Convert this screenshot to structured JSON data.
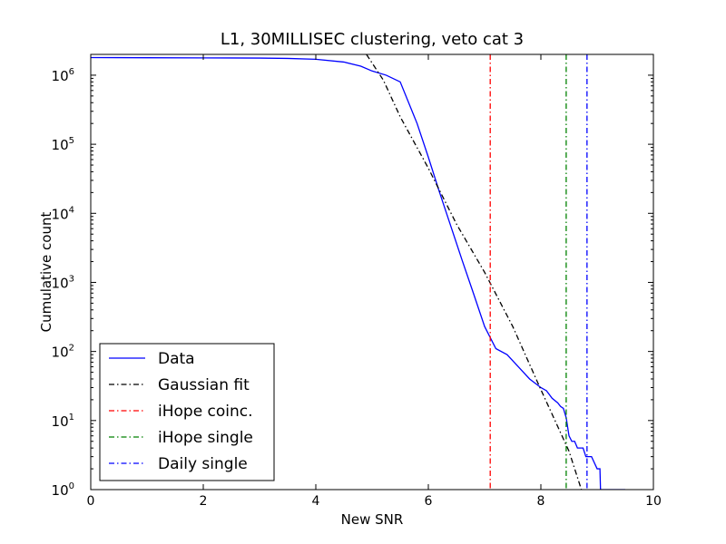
{
  "chart_data": {
    "type": "line",
    "title": "L1, 30MILLISEC clustering, veto cat 3",
    "xlabel": "New SNR",
    "ylabel": "Cumulative count",
    "xlim": [
      0,
      10
    ],
    "ylim": [
      1,
      2000000
    ],
    "yscale": "log",
    "grid": false,
    "legend_position": "lower-left",
    "x_ticks": [
      {
        "value": 0,
        "label": "0"
      },
      {
        "value": 2,
        "label": "2"
      },
      {
        "value": 4,
        "label": "4"
      },
      {
        "value": 6,
        "label": "6"
      },
      {
        "value": 8,
        "label": "8"
      },
      {
        "value": 10,
        "label": "10"
      }
    ],
    "y_ticks": [
      {
        "exp": 0,
        "base": "10",
        "sup": "0"
      },
      {
        "exp": 1,
        "base": "10",
        "sup": "1"
      },
      {
        "exp": 2,
        "base": "10",
        "sup": "2"
      },
      {
        "exp": 3,
        "base": "10",
        "sup": "3"
      },
      {
        "exp": 4,
        "base": "10",
        "sup": "4"
      },
      {
        "exp": 5,
        "base": "10",
        "sup": "5"
      },
      {
        "exp": 6,
        "base": "10",
        "sup": "6"
      }
    ],
    "series": [
      {
        "name": "Data",
        "color": "#0000ff",
        "style": "solid",
        "points": [
          [
            0,
            1800000
          ],
          [
            1,
            1790000
          ],
          [
            2,
            1780000
          ],
          [
            3,
            1770000
          ],
          [
            3.5,
            1750000
          ],
          [
            4,
            1700000
          ],
          [
            4.5,
            1550000
          ],
          [
            4.8,
            1350000
          ],
          [
            5.0,
            1150000
          ],
          [
            5.25,
            1000000
          ],
          [
            5.5,
            800000
          ],
          [
            5.8,
            200000
          ],
          [
            6.0,
            65000
          ],
          [
            6.2,
            20000
          ],
          [
            6.4,
            6500
          ],
          [
            6.6,
            2100
          ],
          [
            6.8,
            700
          ],
          [
            7.0,
            230
          ],
          [
            7.2,
            110
          ],
          [
            7.4,
            90
          ],
          [
            7.6,
            60
          ],
          [
            7.8,
            40
          ],
          [
            8.0,
            30
          ],
          [
            8.1,
            27
          ],
          [
            8.2,
            21
          ],
          [
            8.3,
            18
          ],
          [
            8.35,
            16
          ],
          [
            8.4,
            15
          ],
          [
            8.45,
            11
          ],
          [
            8.5,
            6
          ],
          [
            8.55,
            5
          ],
          [
            8.6,
            5
          ],
          [
            8.65,
            4
          ],
          [
            8.7,
            4
          ],
          [
            8.75,
            4
          ],
          [
            8.8,
            3
          ],
          [
            8.9,
            3
          ],
          [
            9.0,
            2
          ],
          [
            9.05,
            2
          ],
          [
            9.06,
            1
          ],
          [
            9.5,
            1
          ]
        ]
      },
      {
        "name": "Gaussian fit",
        "color": "#000000",
        "style": "dashdot",
        "points": [
          [
            4.9,
            2000000
          ],
          [
            5.2,
            850000
          ],
          [
            5.5,
            250000
          ],
          [
            6.0,
            45000
          ],
          [
            6.5,
            7000
          ],
          [
            7.0,
            1400
          ],
          [
            7.5,
            230
          ],
          [
            8.0,
            28
          ],
          [
            8.5,
            3.6
          ],
          [
            8.72,
            1
          ]
        ]
      },
      {
        "name": "iHope coinc.",
        "color": "#ff0000",
        "style": "dashdot",
        "vline": 7.1
      },
      {
        "name": "iHope single",
        "color": "#008000",
        "style": "dashdot",
        "vline": 8.45
      },
      {
        "name": "Daily single",
        "color": "#0000ff",
        "style": "dashdot",
        "vline": 8.82
      }
    ]
  }
}
